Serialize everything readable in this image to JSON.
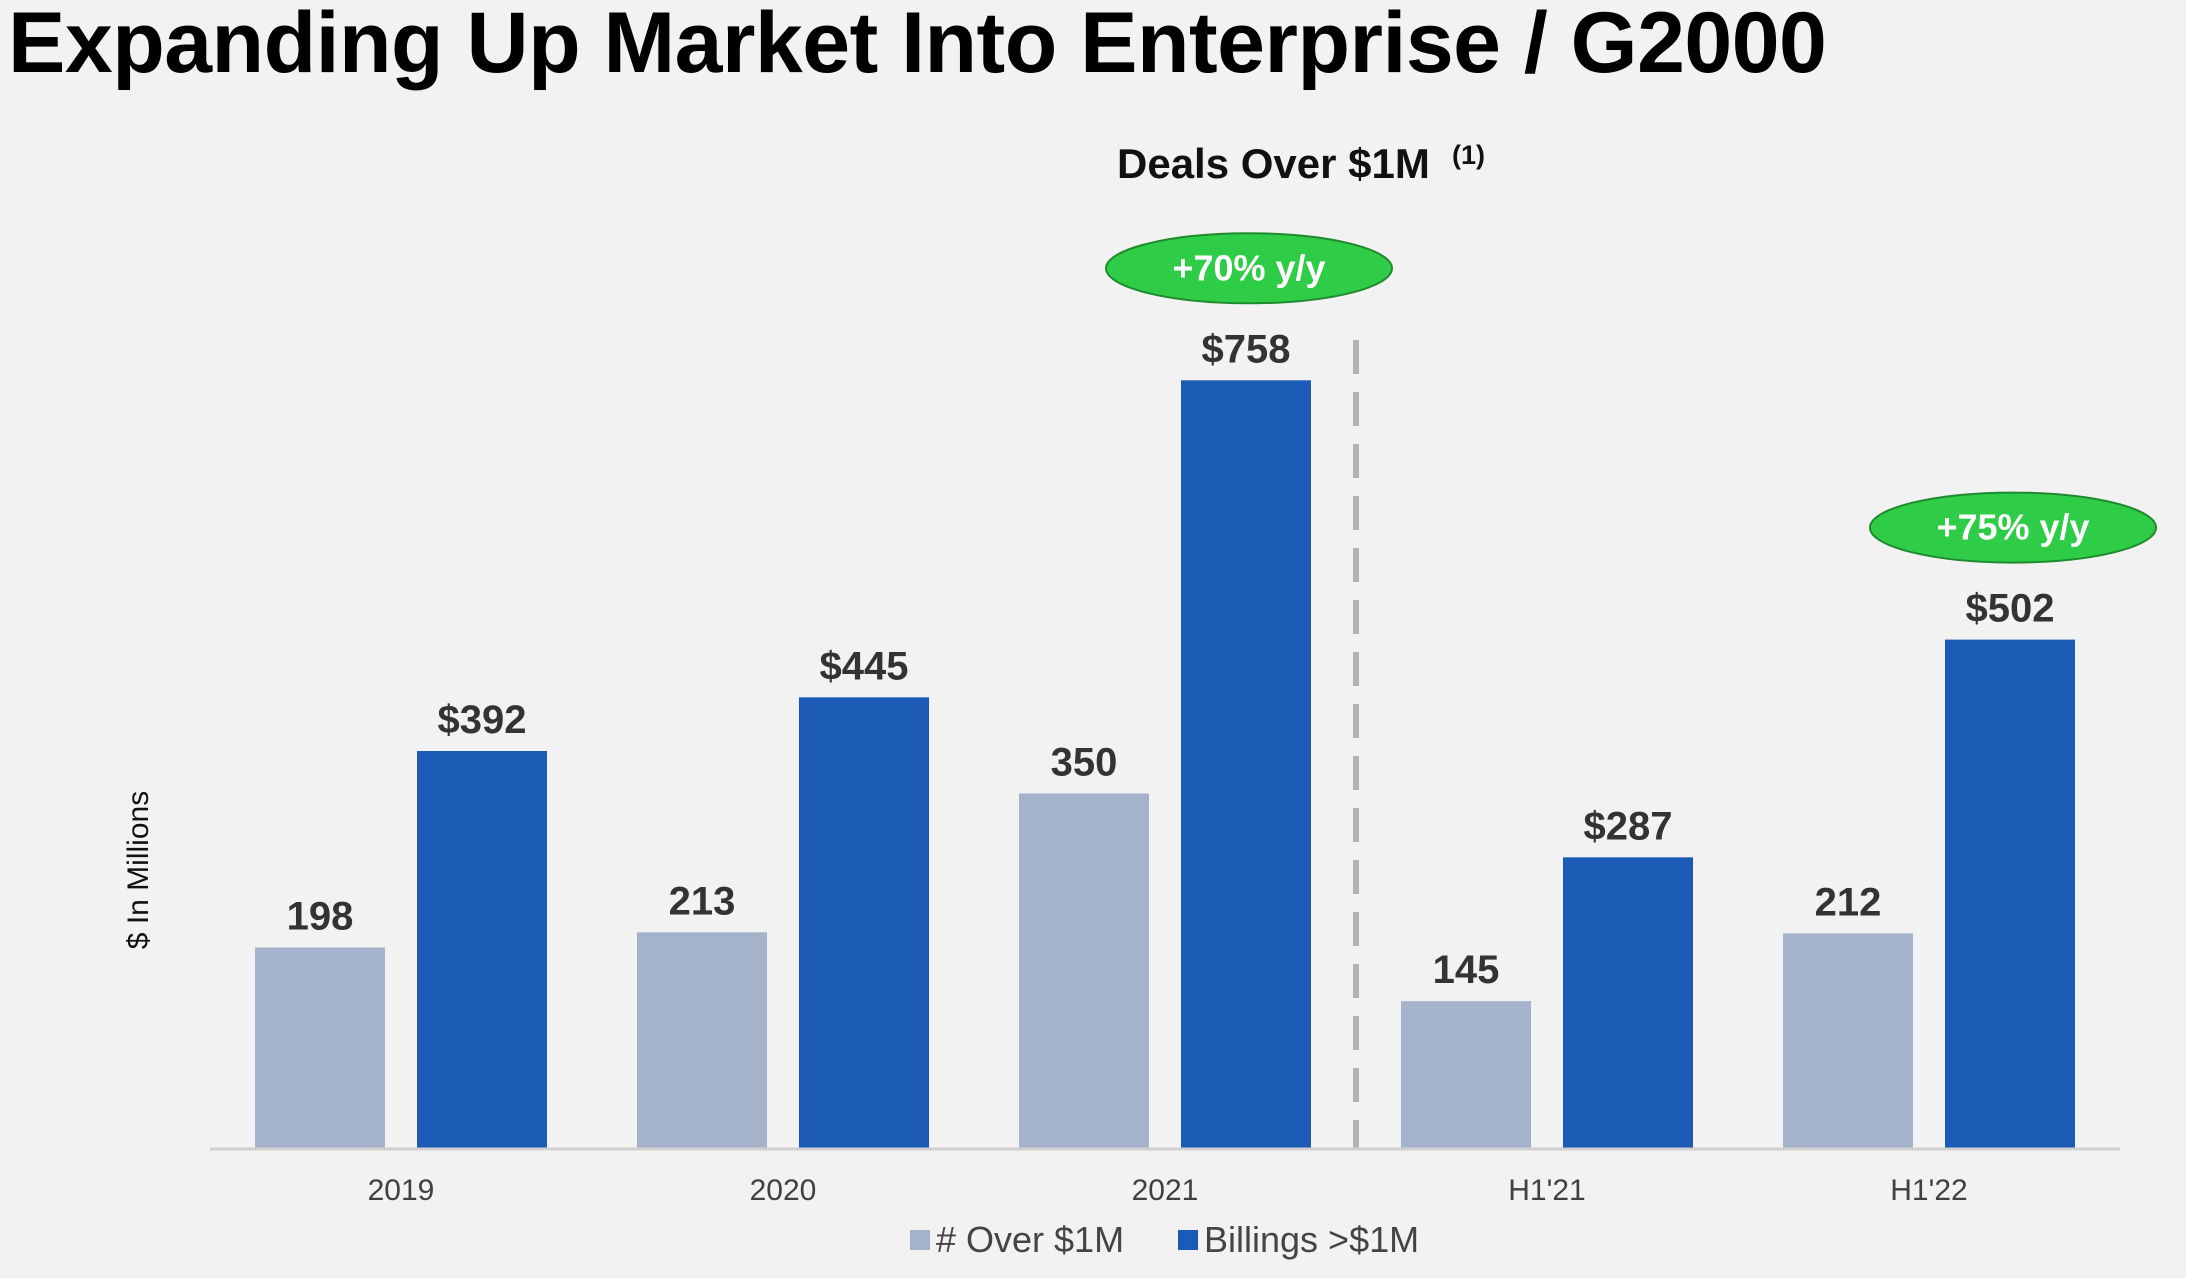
{
  "page": {
    "title": "Expanding Up Market Into Enterprise / G2000"
  },
  "chart_data": {
    "type": "bar",
    "title": "Deals Over $1M",
    "title_footnote": "(1)",
    "ylabel": "$ In Millions",
    "xlabel": "",
    "ylim": [
      0,
      758
    ],
    "grid": false,
    "categories": [
      "2019",
      "2020",
      "2021",
      "H1'21",
      "H1'22"
    ],
    "series": [
      {
        "name": "# Over $1M",
        "color": "#a4b3cb",
        "values": [
          198,
          213,
          350,
          145,
          212
        ],
        "labels": [
          "198",
          "213",
          "350",
          "145",
          "212"
        ]
      },
      {
        "name": "Billings >$1M",
        "color": "#1c5bb5",
        "values": [
          392,
          445,
          758,
          287,
          502
        ],
        "labels": [
          "$392",
          "$445",
          "$758",
          "$287",
          "$502"
        ]
      }
    ],
    "annotations": [
      {
        "text": "+70% y/y",
        "category": "2021",
        "series": "Billings >$1M",
        "color": "#2ecc47"
      },
      {
        "text": "+75% y/y",
        "category": "H1'22",
        "series": "Billings >$1M",
        "color": "#2ecc47"
      }
    ],
    "divider_after_category": "2021",
    "legend_position": "bottom-center"
  }
}
